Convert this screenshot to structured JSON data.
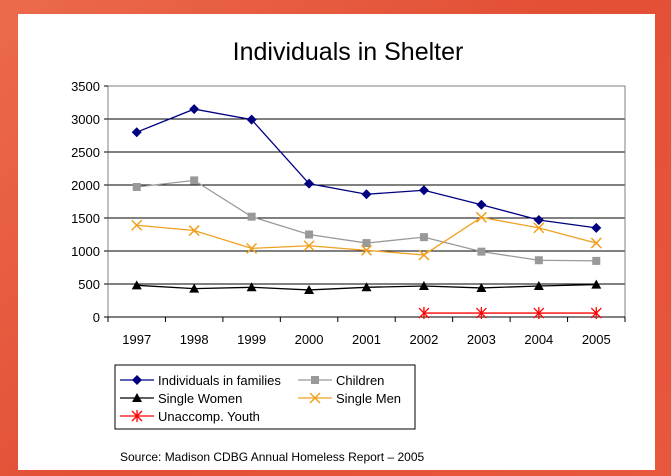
{
  "chart_data": {
    "type": "line",
    "title": "Individuals in Shelter",
    "xlabel": "",
    "ylabel": "",
    "categories": [
      "1997",
      "1998",
      "1999",
      "2000",
      "2001",
      "2002",
      "2003",
      "2004",
      "2005"
    ],
    "ylim": [
      0,
      3500
    ],
    "yticks": [
      0,
      500,
      1000,
      1500,
      2000,
      2500,
      3000,
      3500
    ],
    "grid": "horizontal",
    "legend_position": "bottom",
    "series": [
      {
        "name": "Individuals in families",
        "color": "#000080",
        "marker": "diamond",
        "values": [
          2800,
          3150,
          2990,
          2020,
          1860,
          1920,
          1700,
          1470,
          1350
        ]
      },
      {
        "name": "Children",
        "color": "#999999",
        "marker": "square",
        "values": [
          1970,
          2070,
          1520,
          1250,
          1120,
          1210,
          990,
          860,
          850
        ]
      },
      {
        "name": "Single Women",
        "color": "#000000",
        "marker": "triangle",
        "values": [
          480,
          430,
          450,
          410,
          450,
          470,
          440,
          470,
          490
        ]
      },
      {
        "name": "Single Men",
        "color": "#f0a020",
        "marker": "x",
        "values": [
          1390,
          1310,
          1040,
          1080,
          1010,
          940,
          1510,
          1350,
          1120
        ]
      },
      {
        "name": "Unaccomp. Youth",
        "color": "#ff0000",
        "marker": "star",
        "values": [
          null,
          null,
          null,
          null,
          null,
          60,
          60,
          60,
          60
        ]
      }
    ],
    "source": "Source: Madison CDBG Annual Homeless Report – 2005"
  }
}
